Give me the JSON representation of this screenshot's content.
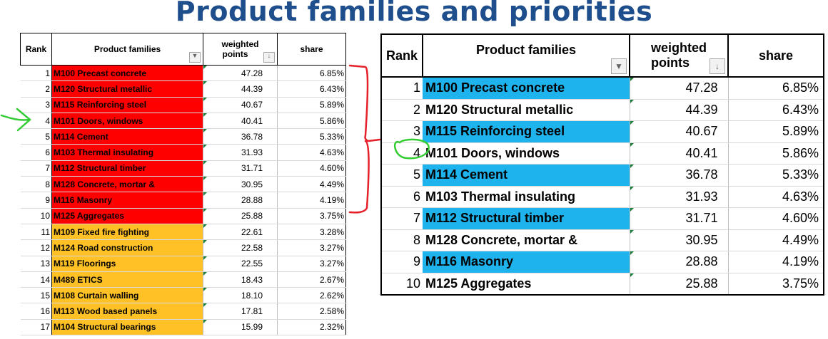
{
  "title": "Product families and priorities",
  "headers": {
    "rank": "Rank",
    "families": "Product families",
    "points_line1": "weighted",
    "points_line2": "points",
    "share": "share"
  },
  "icons": {
    "filter": "dropdown-filter-icon",
    "sort": "sort-descending-icon"
  },
  "colors": {
    "top10_left": "#ff0000",
    "next_left": "#ffc125",
    "highlight_right": "#1fb3ee",
    "annotation_red": "#e5202a",
    "annotation_green": "#33cc33"
  },
  "left_table": {
    "rows": [
      {
        "rank": "1",
        "family": "M100 Precast concrete",
        "points": "47.28",
        "share": "6.85%"
      },
      {
        "rank": "2",
        "family": "M120 Structural metallic",
        "points": "44.39",
        "share": "6.43%"
      },
      {
        "rank": "3",
        "family": "M115 Reinforcing steel",
        "points": "40.67",
        "share": "5.89%"
      },
      {
        "rank": "4",
        "family": "M101 Doors, windows",
        "points": "40.41",
        "share": "5.86%"
      },
      {
        "rank": "5",
        "family": "M114 Cement",
        "points": "36.78",
        "share": "5.33%"
      },
      {
        "rank": "6",
        "family": "M103 Thermal insulating",
        "points": "31.93",
        "share": "4.63%"
      },
      {
        "rank": "7",
        "family": "M112 Structural timber",
        "points": "31.71",
        "share": "4.60%"
      },
      {
        "rank": "8",
        "family": "M128 Concrete, mortar &",
        "points": "30.95",
        "share": "4.49%"
      },
      {
        "rank": "9",
        "family": "M116 Masonry",
        "points": "28.88",
        "share": "4.19%"
      },
      {
        "rank": "10",
        "family": "M125 Aggregates",
        "points": "25.88",
        "share": "3.75%"
      },
      {
        "rank": "11",
        "family": "M109 Fixed fire fighting",
        "points": "22.61",
        "share": "3.28%"
      },
      {
        "rank": "12",
        "family": "M124 Road construction",
        "points": "22.58",
        "share": "3.27%"
      },
      {
        "rank": "13",
        "family": "M119 Floorings",
        "points": "22.55",
        "share": "3.27%"
      },
      {
        "rank": "14",
        "family": "M489 ETICS",
        "points": "18.43",
        "share": "2.67%"
      },
      {
        "rank": "15",
        "family": "M108 Curtain walling",
        "points": "18.10",
        "share": "2.62%"
      },
      {
        "rank": "16",
        "family": "M113 Wood based panels",
        "points": "17.81",
        "share": "2.58%"
      },
      {
        "rank": "17",
        "family": "M104 Structural bearings",
        "points": "15.99",
        "share": "2.32%"
      }
    ]
  },
  "right_table": {
    "rows": [
      {
        "rank": "1",
        "family": "M100 Precast concrete",
        "points": "47.28",
        "share": "6.85%"
      },
      {
        "rank": "2",
        "family": "M120 Structural metallic",
        "points": "44.39",
        "share": "6.43%"
      },
      {
        "rank": "3",
        "family": "M115 Reinforcing steel",
        "points": "40.67",
        "share": "5.89%"
      },
      {
        "rank": "4",
        "family": "M101 Doors, windows",
        "points": "40.41",
        "share": "5.86%"
      },
      {
        "rank": "5",
        "family": "M114 Cement",
        "points": "36.78",
        "share": "5.33%"
      },
      {
        "rank": "6",
        "family": "M103 Thermal insulating",
        "points": "31.93",
        "share": "4.63%"
      },
      {
        "rank": "7",
        "family": "M112 Structural timber",
        "points": "31.71",
        "share": "4.60%"
      },
      {
        "rank": "8",
        "family": "M128 Concrete, mortar &",
        "points": "30.95",
        "share": "4.49%"
      },
      {
        "rank": "9",
        "family": "M116 Masonry",
        "points": "28.88",
        "share": "4.19%"
      },
      {
        "rank": "10",
        "family": "M125 Aggregates",
        "points": "25.88",
        "share": "3.75%"
      }
    ]
  }
}
